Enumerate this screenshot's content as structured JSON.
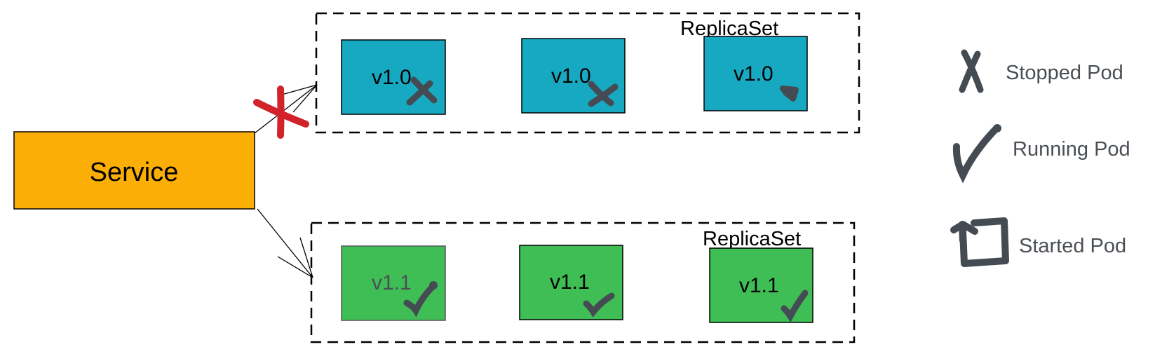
{
  "service": {
    "label": "Service",
    "color": "#FBAE05"
  },
  "replica_sets": [
    {
      "label": "ReplicaSet",
      "pod_color": "#17A9C2",
      "pods": [
        {
          "version": "v1.0",
          "status": "stopped"
        },
        {
          "version": "v1.0",
          "status": "stopped"
        },
        {
          "version": "v1.0",
          "status": "started"
        }
      ]
    },
    {
      "label": "ReplicaSet",
      "pod_color": "#3FBE55",
      "pods": [
        {
          "version": "v1.1",
          "status": "running"
        },
        {
          "version": "v1.1",
          "status": "running"
        },
        {
          "version": "v1.1",
          "status": "running"
        }
      ]
    }
  ],
  "legend": [
    {
      "icon": "stopped-pod-icon",
      "label": "Stopped Pod"
    },
    {
      "icon": "running-pod-icon",
      "label": "Running Pod"
    },
    {
      "icon": "started-pod-icon",
      "label": "Started Pod"
    }
  ],
  "colors": {
    "mark": "#454B52",
    "blocked": "#D2232A",
    "legend_text": "#4A4F55"
  }
}
